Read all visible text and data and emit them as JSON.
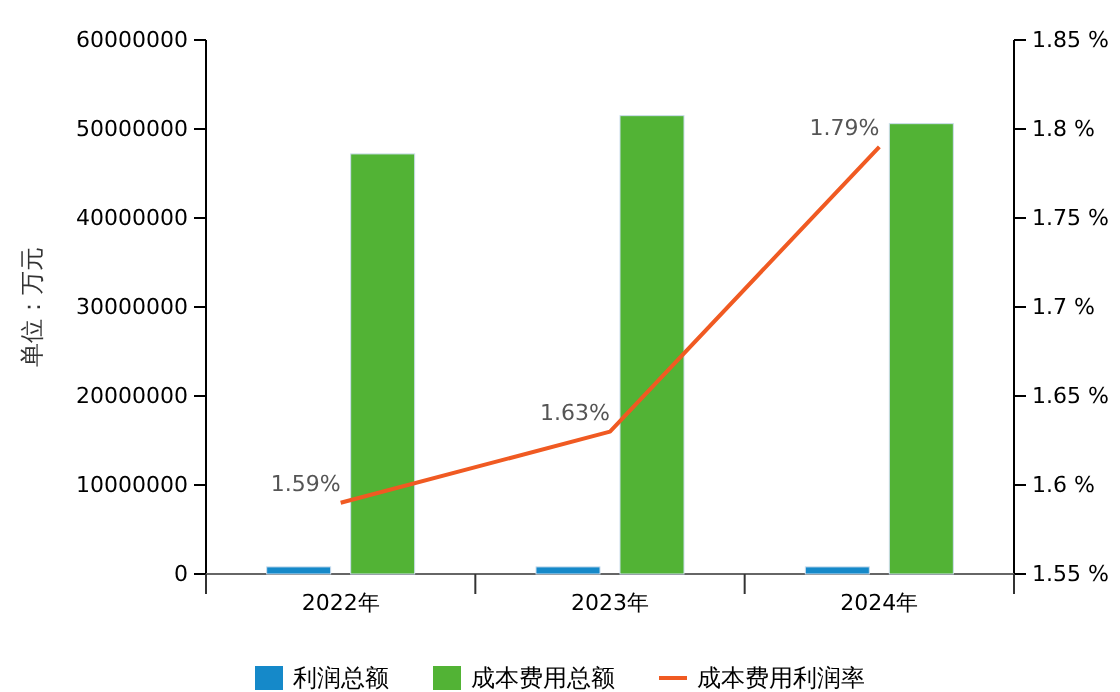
{
  "chart_data": {
    "type": "bar",
    "ylabel": "单位：万元",
    "categories": [
      "2022年",
      "2023年",
      "2024年"
    ],
    "series": [
      {
        "name": "利润总额",
        "color": "#1589c9",
        "values": [
          800000,
          800000,
          800000
        ]
      },
      {
        "name": "成本费用总额",
        "color": "#52b335",
        "values": [
          47200000,
          51500000,
          50600000
        ]
      },
      {
        "name": "成本费用利润率",
        "type": "line",
        "axis": "y2",
        "color": "#f05a22",
        "values": [
          1.59,
          1.63,
          1.79
        ],
        "value_labels": [
          "1.59%",
          "1.63%",
          "1.79%"
        ]
      }
    ],
    "ylim": [
      0,
      60000000
    ],
    "yticks": [
      0,
      10000000,
      20000000,
      30000000,
      40000000,
      50000000,
      60000000
    ],
    "y2lim": [
      1.55,
      1.85
    ],
    "y2ticks": [
      {
        "value": 1.55,
        "label": "1.55 %"
      },
      {
        "value": 1.6,
        "label": "1.6 %"
      },
      {
        "value": 1.65,
        "label": "1.65 %"
      },
      {
        "value": 1.7,
        "label": "1.7 %"
      },
      {
        "value": 1.75,
        "label": "1.75 %"
      },
      {
        "value": 1.8,
        "label": "1.8 %"
      },
      {
        "value": 1.85,
        "label": "1.85 %"
      }
    ],
    "legend": "bottom",
    "marker": "none"
  }
}
